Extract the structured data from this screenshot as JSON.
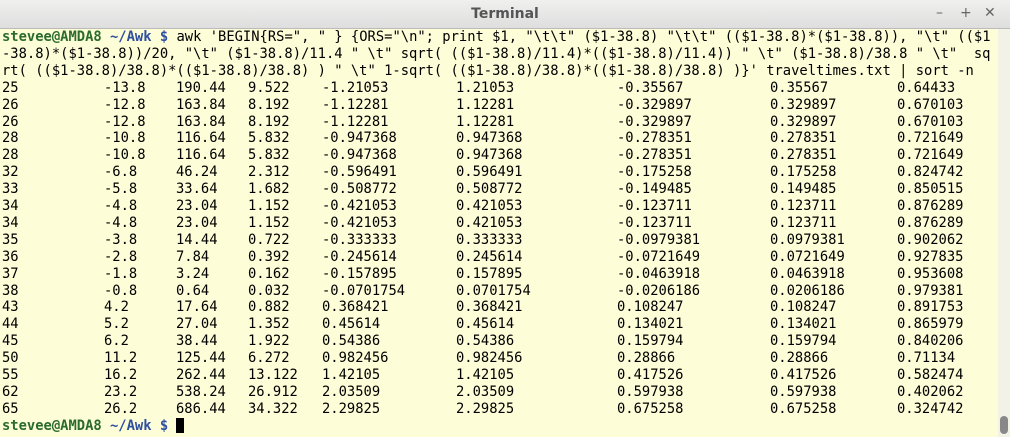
{
  "window": {
    "title": "Terminal",
    "buttons": [
      "–",
      "+",
      "✕"
    ]
  },
  "prompt": {
    "user": "stevee@AMDA8",
    "path": "~/Awk",
    "symbol": "$"
  },
  "command": "awk 'BEGIN{RS=\", \" } {ORS=\"\\n\"; print $1, \"\\t\\t\" ($1-38.8) \"\\t\\t\" (($1-38.8)*($1-38.8)), \"\\t\" (($1-38.8)*($1-38.8))/20, \"\\t\" ($1-38.8)/11.4 \" \\t\" sqrt( (($1-38.8)/11.4)*(($1-38.8)/11.4)) \" \\t\" ($1-38.8)/38.8 \" \\t\"  sqrt( (($1-38.8)/38.8)*(($1-38.8)/38.8) ) \" \\t\" 1-sqrt( (($1-38.8)/38.8)*(($1-38.8)/38.8) )}' traveltimes.txt | sort -n",
  "table": {
    "rows": [
      [
        "25",
        "-13.8",
        "190.44",
        "9.522",
        "-1.21053",
        "1.21053",
        "-0.35567",
        "0.35567",
        "0.64433"
      ],
      [
        "26",
        "-12.8",
        "163.84",
        "8.192",
        "-1.12281",
        "1.12281",
        "-0.329897",
        "0.329897",
        "0.670103"
      ],
      [
        "26",
        "-12.8",
        "163.84",
        "8.192",
        "-1.12281",
        "1.12281",
        "-0.329897",
        "0.329897",
        "0.670103"
      ],
      [
        "28",
        "-10.8",
        "116.64",
        "5.832",
        "-0.947368",
        "0.947368",
        "-0.278351",
        "0.278351",
        "0.721649"
      ],
      [
        "28",
        "-10.8",
        "116.64",
        "5.832",
        "-0.947368",
        "0.947368",
        "-0.278351",
        "0.278351",
        "0.721649"
      ],
      [
        "32",
        "-6.8",
        "46.24",
        "2.312",
        "-0.596491",
        "0.596491",
        "-0.175258",
        "0.175258",
        "0.824742"
      ],
      [
        "33",
        "-5.8",
        "33.64",
        "1.682",
        "-0.508772",
        "0.508772",
        "-0.149485",
        "0.149485",
        "0.850515"
      ],
      [
        "34",
        "-4.8",
        "23.04",
        "1.152",
        "-0.421053",
        "0.421053",
        "-0.123711",
        "0.123711",
        "0.876289"
      ],
      [
        "34",
        "-4.8",
        "23.04",
        "1.152",
        "-0.421053",
        "0.421053",
        "-0.123711",
        "0.123711",
        "0.876289"
      ],
      [
        "35",
        "-3.8",
        "14.44",
        "0.722",
        "-0.333333",
        "0.333333",
        "-0.0979381",
        "0.0979381",
        "0.902062"
      ],
      [
        "36",
        "-2.8",
        "7.84",
        "0.392",
        "-0.245614",
        "0.245614",
        "-0.0721649",
        "0.0721649",
        "0.927835"
      ],
      [
        "37",
        "-1.8",
        "3.24",
        "0.162",
        "-0.157895",
        "0.157895",
        "-0.0463918",
        "0.0463918",
        "0.953608"
      ],
      [
        "38",
        "-0.8",
        "0.64",
        "0.032",
        "-0.0701754",
        "0.0701754",
        "-0.0206186",
        "0.0206186",
        "0.979381"
      ],
      [
        "43",
        "4.2",
        "17.64",
        "0.882",
        "0.368421",
        "0.368421",
        "0.108247",
        "0.108247",
        "0.891753"
      ],
      [
        "44",
        "5.2",
        "27.04",
        "1.352",
        "0.45614",
        "0.45614",
        "0.134021",
        "0.134021",
        "0.865979"
      ],
      [
        "45",
        "6.2",
        "38.44",
        "1.922",
        "0.54386",
        "0.54386",
        "0.159794",
        "0.159794",
        "0.840206"
      ],
      [
        "50",
        "11.2",
        "125.44",
        "6.272",
        "0.982456",
        "0.982456",
        "0.28866",
        "0.28866",
        "0.71134"
      ],
      [
        "55",
        "16.2",
        "262.44",
        "13.122",
        "1.42105",
        "1.42105",
        "0.417526",
        "0.417526",
        "0.582474"
      ],
      [
        "62",
        "23.2",
        "538.24",
        "26.912",
        "2.03509",
        "2.03509",
        "0.597938",
        "0.597938",
        "0.402062"
      ],
      [
        "65",
        "26.2",
        "686.44",
        "34.322",
        "2.29825",
        "2.29825",
        "0.675258",
        "0.675258",
        "0.324742"
      ]
    ]
  }
}
